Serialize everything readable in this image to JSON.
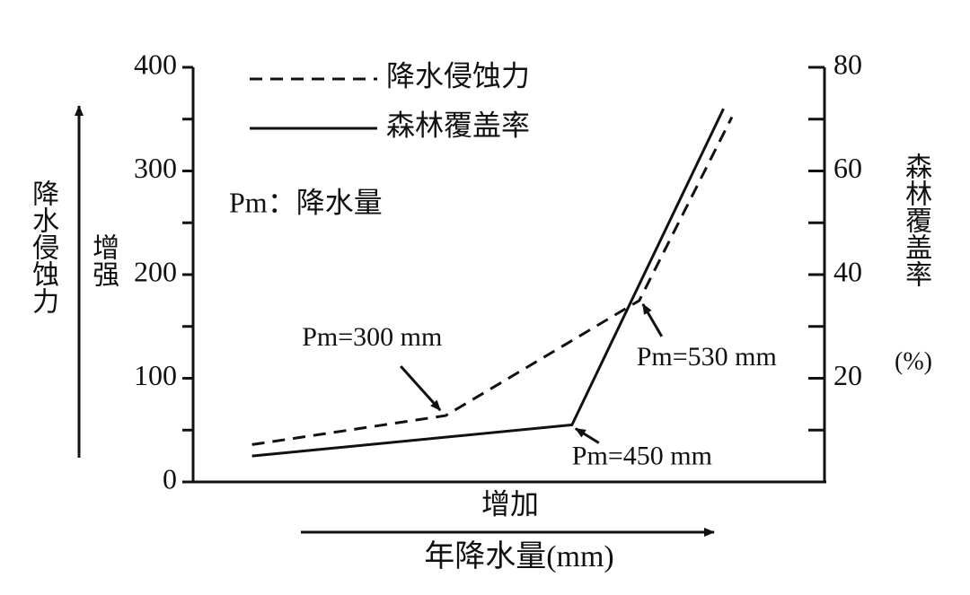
{
  "chart_data": {
    "type": "line",
    "legend_note": "Pm：降水量",
    "ylabel": "降水侵蚀力",
    "ylabel_direction": "增强",
    "y2label": "森林覆盖率",
    "y2label_unit": "(%)",
    "xlabel_direction": "增加",
    "xlabel": "年降水量(mm)",
    "xlim": [
      0,
      750
    ],
    "ylim": [
      0,
      400
    ],
    "yticks": [
      0,
      100,
      200,
      300,
      400
    ],
    "yminorticks": [
      50,
      150,
      250,
      350
    ],
    "y2lim": [
      0,
      80
    ],
    "y2ticks": [
      20,
      40,
      60,
      80
    ],
    "y2minorticks": [
      10,
      30,
      50,
      70
    ],
    "legend": "top-left",
    "series": [
      {
        "name": "降水侵蚀力",
        "color": "#111111",
        "dash": true,
        "x": [
          70,
          300,
          530,
          640
        ],
        "values": [
          36,
          64,
          175,
          352
        ]
      },
      {
        "name": "森林覆盖率",
        "color": "#111111",
        "dash": false,
        "axis": "y2",
        "x": [
          70,
          450,
          630
        ],
        "values": [
          5,
          11,
          72
        ]
      }
    ],
    "annotations": [
      "Pm=300 mm",
      "Pm=530 mm",
      "Pm=450 mm"
    ]
  }
}
